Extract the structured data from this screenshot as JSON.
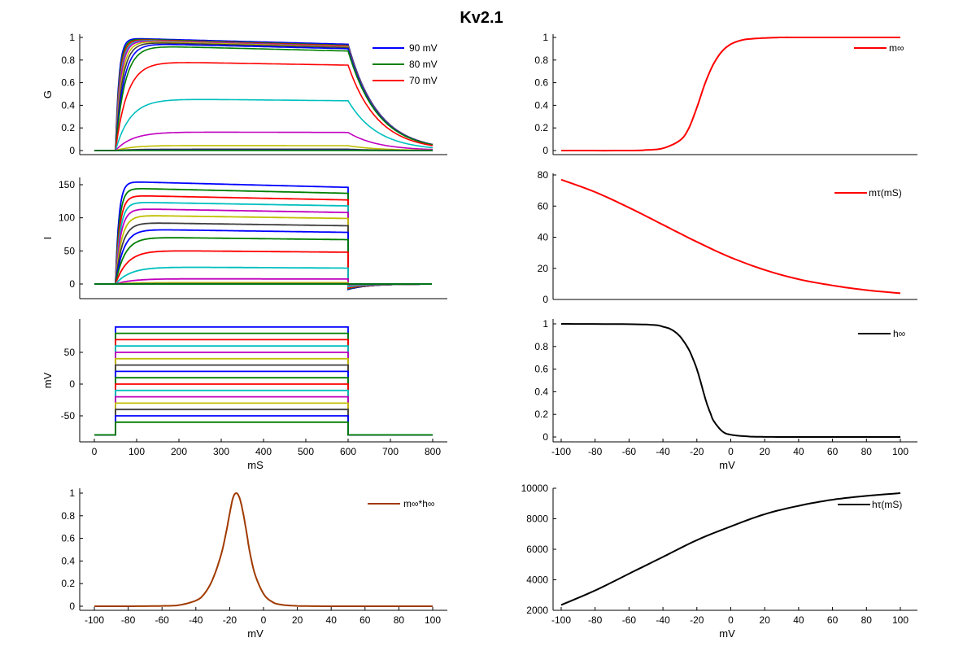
{
  "figure": {
    "title": "Kv2.1"
  },
  "colors": {
    "blue": "#0000ff",
    "green": "#007f00",
    "red": "#ff0000",
    "cyan": "#00bfbf",
    "magenta": "#bf00bf",
    "olive": "#bfbf00",
    "darkgray": "#3f3f3f",
    "brown": "#a03a00",
    "black": "#000000"
  },
  "chart_data": [
    {
      "id": "g_panel",
      "type": "line",
      "title": "",
      "xlabel": "",
      "ylabel": "G",
      "xlim": [
        0,
        800
      ],
      "ylim": [
        0,
        1
      ],
      "xticks": [],
      "yticks": [
        0,
        0.2,
        0.4,
        0.6,
        0.8,
        1
      ],
      "ytick_labels": [
        "0",
        "0.2",
        "0.4",
        "0.6",
        "0.8",
        "1"
      ],
      "legend": [
        "90 mV",
        "80 mV",
        "70 mV"
      ],
      "legend_loc": "top-right",
      "t_on": 50,
      "t_off": 600,
      "series": [
        {
          "v": 90,
          "plateau": 0.995,
          "end": 0.94,
          "tau": 8,
          "color": "blue"
        },
        {
          "v": 80,
          "plateau": 0.99,
          "end": 0.93,
          "tau": 9,
          "color": "green"
        },
        {
          "v": 70,
          "plateau": 0.985,
          "end": 0.925,
          "tau": 10,
          "color": "red"
        },
        {
          "v": 60,
          "plateau": 0.98,
          "end": 0.92,
          "tau": 11,
          "color": "cyan"
        },
        {
          "v": 50,
          "plateau": 0.975,
          "end": 0.92,
          "tau": 12,
          "color": "magenta"
        },
        {
          "v": 40,
          "plateau": 0.97,
          "end": 0.915,
          "tau": 14,
          "color": "olive"
        },
        {
          "v": 30,
          "plateau": 0.96,
          "end": 0.91,
          "tau": 16,
          "color": "darkgray"
        },
        {
          "v": 20,
          "plateau": 0.95,
          "end": 0.9,
          "tau": 19,
          "color": "blue"
        },
        {
          "v": 10,
          "plateau": 0.93,
          "end": 0.88,
          "tau": 22,
          "color": "green"
        },
        {
          "v": 0,
          "plateau": 0.79,
          "end": 0.755,
          "tau": 28,
          "color": "red"
        },
        {
          "v": -10,
          "plateau": 0.46,
          "end": 0.44,
          "tau": 35,
          "color": "cyan"
        },
        {
          "v": -20,
          "plateau": 0.165,
          "end": 0.16,
          "tau": 40,
          "color": "magenta"
        },
        {
          "v": -30,
          "plateau": 0.045,
          "end": 0.043,
          "tau": 40,
          "color": "olive"
        },
        {
          "v": -40,
          "plateau": 0.012,
          "end": 0.012,
          "tau": 40,
          "color": "darkgray"
        },
        {
          "v": -50,
          "plateau": 0.003,
          "end": 0.003,
          "tau": 40,
          "color": "blue"
        },
        {
          "v": -60,
          "plateau": 0.001,
          "end": 0.001,
          "tau": 40,
          "color": "green"
        }
      ]
    },
    {
      "id": "i_panel",
      "type": "line",
      "title": "",
      "xlabel": "",
      "ylabel": "I",
      "xlim": [
        0,
        800
      ],
      "ylim": [
        -16,
        160
      ],
      "xticks": [],
      "yticks": [
        0,
        50,
        100,
        150
      ],
      "ytick_labels": [
        "0",
        "50",
        "100",
        "150"
      ],
      "t_on": 50,
      "t_off": 600,
      "series": [
        {
          "v": 90,
          "peak": 155,
          "end": 146,
          "tau": 8,
          "tail": -8,
          "color": "blue"
        },
        {
          "v": 80,
          "peak": 145,
          "end": 137,
          "tau": 9,
          "tail": -8,
          "color": "green"
        },
        {
          "v": 70,
          "peak": 134,
          "end": 127,
          "tau": 10,
          "tail": -8,
          "color": "red"
        },
        {
          "v": 60,
          "peak": 124,
          "end": 118,
          "tau": 11,
          "tail": -8,
          "color": "cyan"
        },
        {
          "v": 50,
          "peak": 114,
          "end": 108,
          "tau": 12,
          "tail": -8,
          "color": "magenta"
        },
        {
          "v": 40,
          "peak": 104,
          "end": 99,
          "tau": 14,
          "tail": -8,
          "color": "olive"
        },
        {
          "v": 30,
          "peak": 93,
          "end": 88,
          "tau": 16,
          "tail": -8,
          "color": "darkgray"
        },
        {
          "v": 20,
          "peak": 83,
          "end": 78,
          "tau": 19,
          "tail": -8,
          "color": "blue"
        },
        {
          "v": 10,
          "peak": 71,
          "end": 67,
          "tau": 22,
          "tail": -7,
          "color": "green"
        },
        {
          "v": 0,
          "peak": 51,
          "end": 48,
          "tau": 28,
          "tail": -6,
          "color": "red"
        },
        {
          "v": -10,
          "peak": 26,
          "end": 24,
          "tau": 35,
          "tail": -4,
          "color": "cyan"
        },
        {
          "v": -20,
          "peak": 8,
          "end": 7.5,
          "tau": 40,
          "tail": -1.5,
          "color": "magenta"
        },
        {
          "v": -30,
          "peak": 2,
          "end": 2,
          "tau": 40,
          "tail": -0.5,
          "color": "olive"
        },
        {
          "v": -40,
          "peak": 0.4,
          "end": 0.4,
          "tau": 40,
          "tail": 0,
          "color": "darkgray"
        },
        {
          "v": -50,
          "peak": 0,
          "end": 0,
          "tau": 40,
          "tail": 0,
          "color": "blue"
        },
        {
          "v": -60,
          "peak": 0,
          "end": 0,
          "tau": 40,
          "tail": 0,
          "color": "green"
        }
      ]
    },
    {
      "id": "v_panel",
      "type": "line",
      "title": "",
      "xlabel": "mS",
      "ylabel": "mV",
      "xlim": [
        -15,
        820
      ],
      "ylim": [
        -90,
        95
      ],
      "xticks": [
        0,
        100,
        200,
        300,
        400,
        500,
        600,
        700,
        800
      ],
      "xtick_labels": [
        "0",
        "100",
        "200",
        "300",
        "400",
        "500",
        "600",
        "700",
        "800"
      ],
      "yticks": [
        -50,
        0,
        50
      ],
      "ytick_labels": [
        "-50",
        "0",
        "50"
      ],
      "t_on": 50,
      "t_off": 600,
      "t_end": 800,
      "holding": -80,
      "series": [
        {
          "v": 90,
          "color": "blue"
        },
        {
          "v": 80,
          "color": "green"
        },
        {
          "v": 70,
          "color": "red"
        },
        {
          "v": 60,
          "color": "cyan"
        },
        {
          "v": 50,
          "color": "magenta"
        },
        {
          "v": 40,
          "color": "olive"
        },
        {
          "v": 30,
          "color": "darkgray"
        },
        {
          "v": 20,
          "color": "blue"
        },
        {
          "v": 10,
          "color": "green"
        },
        {
          "v": 0,
          "color": "red"
        },
        {
          "v": -10,
          "color": "cyan"
        },
        {
          "v": -20,
          "color": "magenta"
        },
        {
          "v": -30,
          "color": "olive"
        },
        {
          "v": -40,
          "color": "darkgray"
        },
        {
          "v": -50,
          "color": "blue"
        },
        {
          "v": -60,
          "color": "green"
        }
      ]
    },
    {
      "id": "mh_panel",
      "type": "line",
      "title": "",
      "xlabel": "mV",
      "ylabel": "",
      "xlim": [
        -105,
        105
      ],
      "ylim": [
        0,
        1
      ],
      "xticks": [
        -100,
        -80,
        -60,
        -40,
        -20,
        0,
        20,
        40,
        60,
        80,
        100
      ],
      "xtick_labels": [
        "-100",
        "-80",
        "-60",
        "-40",
        "-20",
        "0",
        "20",
        "40",
        "60",
        "80",
        "100"
      ],
      "yticks": [
        0,
        0.2,
        0.4,
        0.6,
        0.8,
        1
      ],
      "ytick_labels": [
        "0",
        "0.2",
        "0.4",
        "0.6",
        "0.8",
        "1"
      ],
      "legend": [
        "m∞*h∞"
      ],
      "legend_loc": "top-right",
      "series": [
        {
          "name": "m∞*h∞",
          "x": [
            -100,
            -80,
            -60,
            -50,
            -40,
            -35,
            -30,
            -25,
            -22,
            -20,
            -18,
            -16,
            -14,
            -12,
            -10,
            -8,
            -5,
            0,
            5,
            10,
            20,
            40,
            60,
            80,
            100
          ],
          "y": [
            0,
            0,
            0.003,
            0.01,
            0.05,
            0.11,
            0.24,
            0.46,
            0.66,
            0.82,
            0.96,
            1.0,
            0.95,
            0.82,
            0.65,
            0.47,
            0.28,
            0.11,
            0.04,
            0.015,
            0.003,
            0,
            0,
            0,
            0
          ],
          "color": "brown"
        }
      ]
    },
    {
      "id": "minf_panel",
      "type": "line",
      "title": "",
      "xlabel": "",
      "ylabel": "",
      "xlim": [
        -105,
        105
      ],
      "ylim": [
        0,
        1
      ],
      "xticks": [],
      "yticks": [
        0,
        0.2,
        0.4,
        0.6,
        0.8,
        1
      ],
      "ytick_labels": [
        "0",
        "0.2",
        "0.4",
        "0.6",
        "0.8",
        "1"
      ],
      "legend": [
        "m∞"
      ],
      "legend_loc": "top-right",
      "series": [
        {
          "name": "m∞",
          "x": [
            -100,
            -60,
            -50,
            -40,
            -30,
            -25,
            -20,
            -15,
            -10,
            -5,
            0,
            5,
            10,
            20,
            30,
            40,
            60,
            100
          ],
          "y": [
            0,
            0,
            0.005,
            0.02,
            0.09,
            0.19,
            0.38,
            0.6,
            0.77,
            0.88,
            0.94,
            0.97,
            0.985,
            0.995,
            1.0,
            1.0,
            1.0,
            1.0
          ],
          "color": "red"
        }
      ]
    },
    {
      "id": "mtau_panel",
      "type": "line",
      "title": "",
      "xlabel": "",
      "ylabel": "",
      "xlim": [
        -105,
        105
      ],
      "ylim": [
        0,
        80
      ],
      "xticks": [],
      "yticks": [
        0,
        20,
        40,
        60,
        80
      ],
      "ytick_labels": [
        "0",
        "20",
        "40",
        "60",
        "80"
      ],
      "legend": [
        "mτ(mS)"
      ],
      "legend_loc": "top-right",
      "series": [
        {
          "name": "mτ(mS)",
          "x": [
            -100,
            -80,
            -60,
            -40,
            -20,
            0,
            20,
            40,
            60,
            80,
            100
          ],
          "y": [
            77,
            69,
            59,
            48,
            37,
            27,
            19,
            13,
            9,
            6,
            4
          ],
          "color": "red"
        }
      ]
    },
    {
      "id": "hinf_panel",
      "type": "line",
      "title": "",
      "xlabel": "mV",
      "ylabel": "",
      "xlim": [
        -105,
        105
      ],
      "ylim": [
        0,
        1
      ],
      "xticks": [
        -100,
        -80,
        -60,
        -40,
        -20,
        0,
        20,
        40,
        60,
        80,
        100
      ],
      "xtick_labels": [
        "-100",
        "-80",
        "-60",
        "-40",
        "-20",
        "0",
        "20",
        "40",
        "60",
        "80",
        "100"
      ],
      "yticks": [
        0,
        0.2,
        0.4,
        0.6,
        0.8,
        1
      ],
      "ytick_labels": [
        "0",
        "0.2",
        "0.4",
        "0.6",
        "0.8",
        "1"
      ],
      "legend": [
        "h∞"
      ],
      "legend_loc": "top-right",
      "series": [
        {
          "name": "h∞",
          "x": [
            -100,
            -60,
            -45,
            -40,
            -35,
            -30,
            -25,
            -22,
            -20,
            -18,
            -16,
            -14,
            -12,
            -10,
            -5,
            0,
            10,
            20,
            40,
            100
          ],
          "y": [
            1,
            0.997,
            0.99,
            0.975,
            0.95,
            0.89,
            0.78,
            0.68,
            0.6,
            0.5,
            0.39,
            0.29,
            0.21,
            0.14,
            0.05,
            0.02,
            0.005,
            0.001,
            0,
            0
          ],
          "color": "black"
        }
      ]
    },
    {
      "id": "htau_panel",
      "type": "line",
      "title": "",
      "xlabel": "mV",
      "ylabel": "",
      "xlim": [
        -105,
        105
      ],
      "ylim": [
        2000,
        10000
      ],
      "xticks": [
        -100,
        -80,
        -60,
        -40,
        -20,
        0,
        20,
        40,
        60,
        80,
        100
      ],
      "xtick_labels": [
        "-100",
        "-80",
        "-60",
        "-40",
        "-20",
        "0",
        "20",
        "40",
        "60",
        "80",
        "100"
      ],
      "yticks": [
        2000,
        4000,
        6000,
        8000,
        10000
      ],
      "ytick_labels": [
        "2000",
        "4000",
        "6000",
        "8000",
        "10000"
      ],
      "legend": [
        "hτ(mS)"
      ],
      "legend_loc": "top-right",
      "series": [
        {
          "name": "hτ(mS)",
          "x": [
            -100,
            -80,
            -60,
            -40,
            -20,
            0,
            20,
            40,
            60,
            80,
            100
          ],
          "y": [
            2350,
            3300,
            4400,
            5500,
            6600,
            7500,
            8300,
            8850,
            9250,
            9500,
            9680
          ],
          "color": "black"
        }
      ]
    }
  ]
}
